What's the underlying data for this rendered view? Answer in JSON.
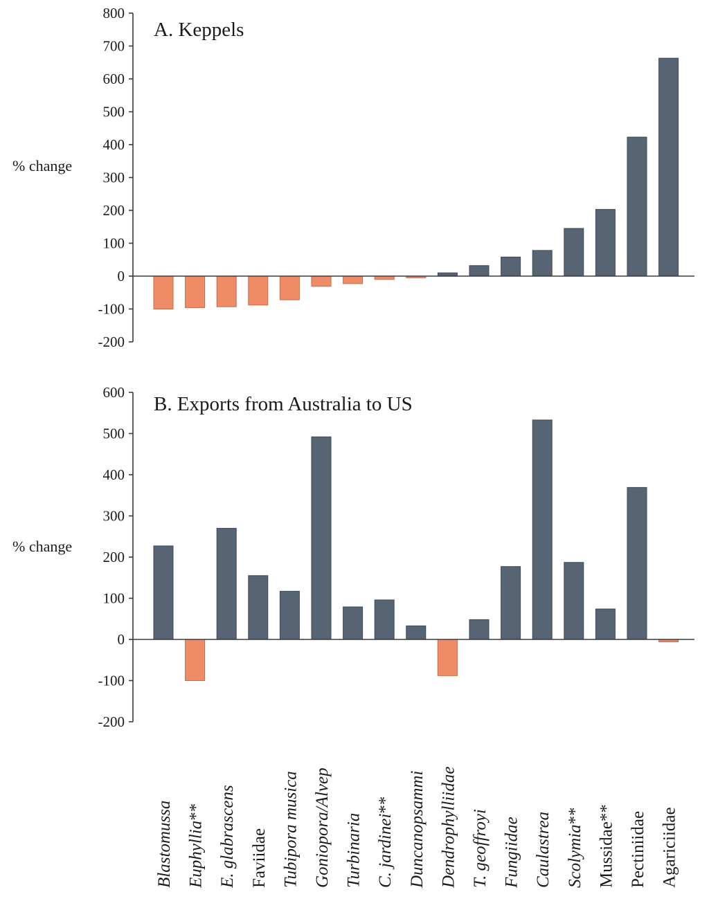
{
  "colors": {
    "positive": "#566474",
    "negative": "#f08b68",
    "positive_stroke": "#3d4957",
    "negative_stroke": "#c8694a"
  },
  "categories": [
    {
      "label": "Blastomussa",
      "italic": true,
      "suffix": ""
    },
    {
      "label": "Euphyllia",
      "italic": true,
      "suffix": "**"
    },
    {
      "label": "E. glabrascens",
      "italic": true,
      "suffix": ""
    },
    {
      "label": "Faviidae",
      "italic": false,
      "suffix": ""
    },
    {
      "label": "Tubipora musica",
      "italic": true,
      "suffix": ""
    },
    {
      "label": "Goniopora/Alvep",
      "italic": true,
      "suffix": ""
    },
    {
      "label": "Turbinaria",
      "italic": true,
      "suffix": ""
    },
    {
      "label": "C. jardinei",
      "italic": true,
      "suffix": "**"
    },
    {
      "label": "Duncanopsammi",
      "italic": true,
      "suffix": ""
    },
    {
      "label": "Dendrophylliidae",
      "italic": true,
      "suffix": ""
    },
    {
      "label": "T. geoffroyi",
      "italic": true,
      "suffix": ""
    },
    {
      "label": "Fungiidae",
      "italic": true,
      "suffix": ""
    },
    {
      "label": "Caulastrea",
      "italic": true,
      "suffix": ""
    },
    {
      "label": "Scolymia",
      "italic": true,
      "suffix": "**"
    },
    {
      "label": "Mussidae",
      "italic": false,
      "suffix": "**"
    },
    {
      "label": "Pectiniidae",
      "italic": false,
      "suffix": ""
    },
    {
      "label": "Agariciidae",
      "italic": false,
      "suffix": ""
    }
  ],
  "chart_data": [
    {
      "type": "bar",
      "title": "A. Keppels",
      "ylabel": "% change",
      "xlabel": "",
      "ylim": [
        -200,
        800
      ],
      "yticks": [
        -200,
        -100,
        0,
        100,
        200,
        300,
        400,
        500,
        600,
        700,
        800
      ],
      "values": [
        -100,
        -96,
        -93,
        -88,
        -72,
        -31,
        -23,
        -10,
        -5,
        10,
        32,
        58,
        78,
        145,
        203,
        423,
        663
      ]
    },
    {
      "type": "bar",
      "title": "B. Exports from Australia to US",
      "ylabel": "% change",
      "xlabel": "",
      "ylim": [
        -200,
        600
      ],
      "yticks": [
        -200,
        -100,
        0,
        100,
        200,
        300,
        400,
        500,
        600
      ],
      "values": [
        227,
        -100,
        270,
        155,
        117,
        492,
        79,
        96,
        33,
        -88,
        48,
        177,
        533,
        187,
        74,
        369,
        -6
      ]
    }
  ]
}
